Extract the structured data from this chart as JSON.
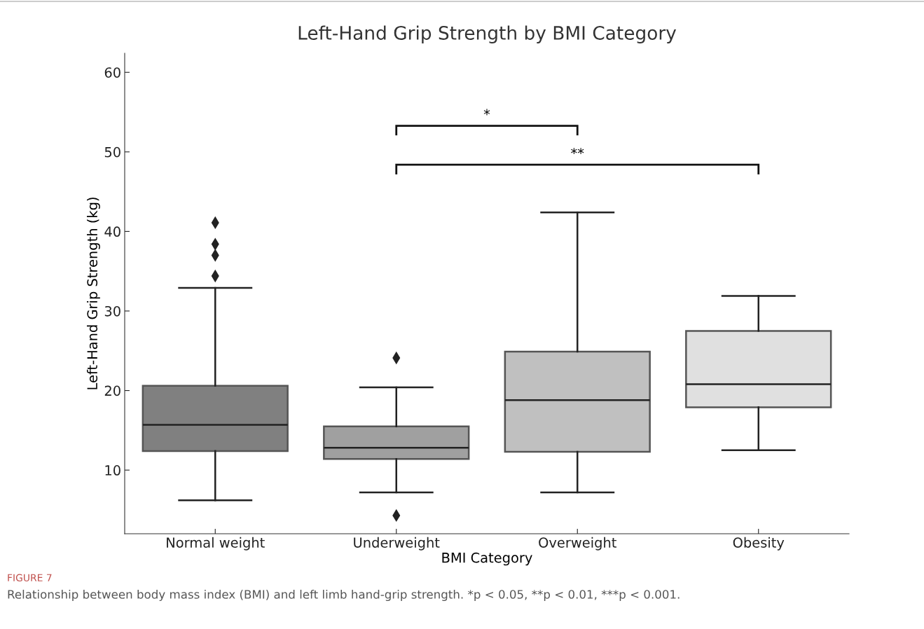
{
  "chart_data": {
    "type": "box",
    "title": "Left-Hand Grip Strength by BMI Category",
    "xlabel": "BMI Category",
    "ylabel": "Left-Hand Grip Strength (kg)",
    "categories": [
      "Normal weight",
      "Underweight",
      "Overweight",
      "Obesity"
    ],
    "colors": [
      "#808080",
      "#a0a0a0",
      "#c0c0c0",
      "#e0e0e0"
    ],
    "boxes": [
      {
        "low": 6.2,
        "q1": 12.4,
        "median": 15.7,
        "q3": 20.6,
        "high": 32.9,
        "outliers": [
          41.1,
          38.4,
          37.0,
          34.4
        ]
      },
      {
        "low": 7.2,
        "q1": 11.4,
        "median": 12.8,
        "q3": 15.5,
        "high": 20.4,
        "outliers": [
          24.1,
          4.3
        ]
      },
      {
        "low": 7.2,
        "q1": 12.3,
        "median": 18.8,
        "q3": 24.9,
        "high": 42.4
      },
      {
        "low": 12.5,
        "q1": 17.9,
        "median": 20.8,
        "q3": 27.5,
        "high": 31.9
      }
    ],
    "ylim": [
      2.0,
      62.4
    ],
    "yticks": [
      10,
      20,
      30,
      40,
      50,
      60
    ],
    "grid": false,
    "marker": "diamond",
    "annotations": [
      "*",
      "**",
      "FIGURE 7",
      "Relationship between body mass index (BMI) and left limb hand-grip strength. *p < 0.05, **p < 0.01, ***p < 0.001."
    ]
  }
}
